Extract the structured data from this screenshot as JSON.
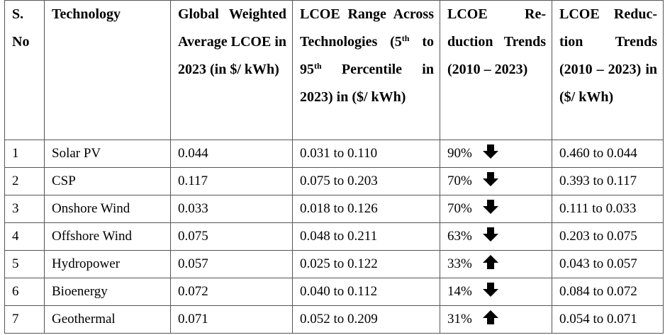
{
  "headers": {
    "sno": "S. No",
    "technology": "Technology",
    "global_lcoe": "Global Weighted Aver­age LCOE in 2023 (in $/ kWh)",
    "lcoe_range_pre": "LCOE Range Across Technolo­gies (5",
    "lcoe_range_sup1": "th",
    "lcoe_range_mid": " to 95",
    "lcoe_range_sup2": "th",
    "lcoe_range_post": " Per­centile in 2023) in ($/ kWh)",
    "reduction_trend": "LCOE Re­duction Trends (2010 – 2023)",
    "reduction_values": "LCOE Reduc­tion Trends (2010 – 2023) in ($/ kWh)"
  },
  "rows": [
    {
      "sno": "1",
      "technology": "Solar PV",
      "global_lcoe": "0.044",
      "range": "0.031 to 0.110",
      "pct": "90%",
      "direction": "down",
      "reduction": "0.460 to 0.044"
    },
    {
      "sno": "2",
      "technology": "CSP",
      "global_lcoe": "0.117",
      "range": "0.075 to 0.203",
      "pct": "70%",
      "direction": "down",
      "reduction": "0.393 to 0.117"
    },
    {
      "sno": "3",
      "technology": "Onshore Wind",
      "global_lcoe": "0.033",
      "range": "0.018 to 0.126",
      "pct": "70%",
      "direction": "down",
      "reduction": "0.111 to 0.033"
    },
    {
      "sno": "4",
      "technology": "Offshore Wind",
      "global_lcoe": "0.075",
      "range": "0.048 to 0.211",
      "pct": "63%",
      "direction": "down",
      "reduction": "0.203 to 0.075"
    },
    {
      "sno": "5",
      "technology": "Hydropower",
      "global_lcoe": "0.057",
      "range": "0.025 to 0.122",
      "pct": "33%",
      "direction": "up",
      "reduction": "0.043 to 0.057"
    },
    {
      "sno": "6",
      "technology": "Bioenergy",
      "global_lcoe": "0.072",
      "range": "0.040 to 0.112",
      "pct": "14%",
      "direction": "down",
      "reduction": "0.084 to 0.072"
    },
    {
      "sno": "7",
      "technology": "Geothermal",
      "global_lcoe": "0.071",
      "range": "0.052 to 0.209",
      "pct": "31%",
      "direction": "up",
      "reduction": "0.054 to 0.071"
    }
  ],
  "icons": {
    "down": "arrow-down-icon",
    "up": "arrow-up-icon"
  }
}
